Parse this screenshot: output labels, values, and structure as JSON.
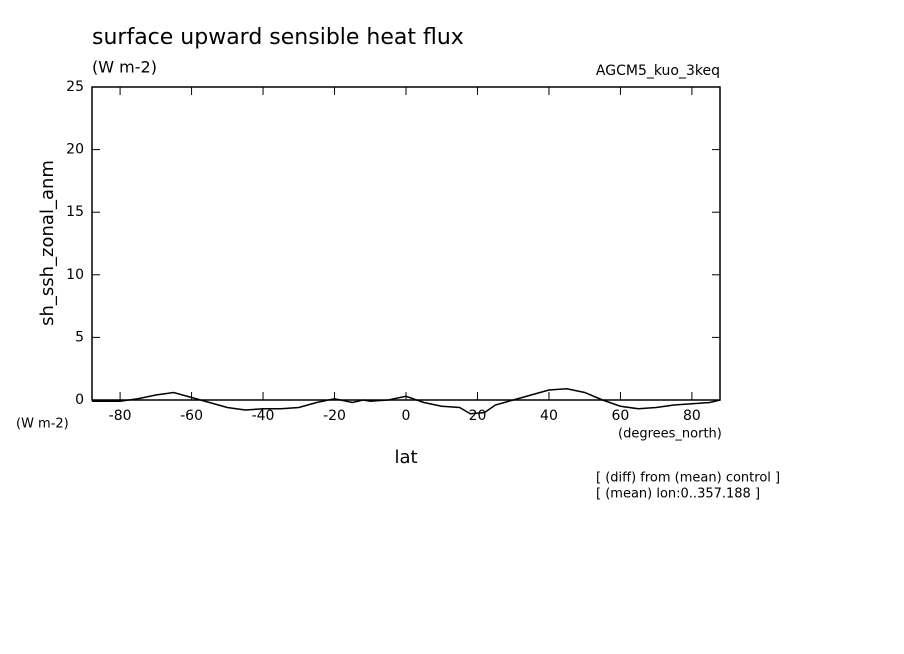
{
  "chart_data": {
    "type": "line",
    "title": "surface upward sensible heat flux",
    "subtitle": "(W m-2)",
    "annotation": "AGCM5_kuo_3keq",
    "y_label": "sh_ssh_zonal_anm",
    "y_unit": "(W m-2)",
    "x_label": "lat",
    "x_unit": "(degrees_north)",
    "notes": [
      "[ (diff) from (mean) control ]",
      "[ (mean) lon:0..357.188 ]"
    ],
    "x": [
      -87.86,
      -80,
      -75,
      -70,
      -65,
      -60,
      -55,
      -50,
      -45,
      -40,
      -35,
      -30,
      -25,
      -20,
      -15,
      -12,
      -10,
      -5,
      0,
      5,
      10,
      15,
      18,
      22,
      25,
      30,
      35,
      40,
      45,
      50,
      55,
      60,
      65,
      70,
      75,
      80,
      85,
      87.86
    ],
    "series": [
      {
        "color": "#000000",
        "values": [
          -0.1,
          -0.1,
          0.1,
          0.4,
          0.6,
          0.2,
          -0.2,
          -0.6,
          -0.8,
          -0.7,
          -0.7,
          -0.6,
          -0.2,
          0.1,
          -0.2,
          0,
          -0.1,
          0,
          0.3,
          -0.2,
          -0.5,
          -0.6,
          -1.1,
          -1.0,
          -0.4,
          0,
          0.4,
          0.8,
          0.9,
          0.6,
          0,
          -0.5,
          -0.7,
          -0.6,
          -0.4,
          -0.3,
          -0.2,
          0
        ]
      }
    ],
    "xlim": [
      -87.86,
      87.86
    ],
    "xticks": [
      -80,
      -60,
      -40,
      -20,
      0,
      20,
      40,
      60,
      80
    ],
    "ylim": [
      0,
      25
    ],
    "yticks": [
      0,
      5,
      10,
      15,
      20,
      25
    ],
    "grid": false
  }
}
